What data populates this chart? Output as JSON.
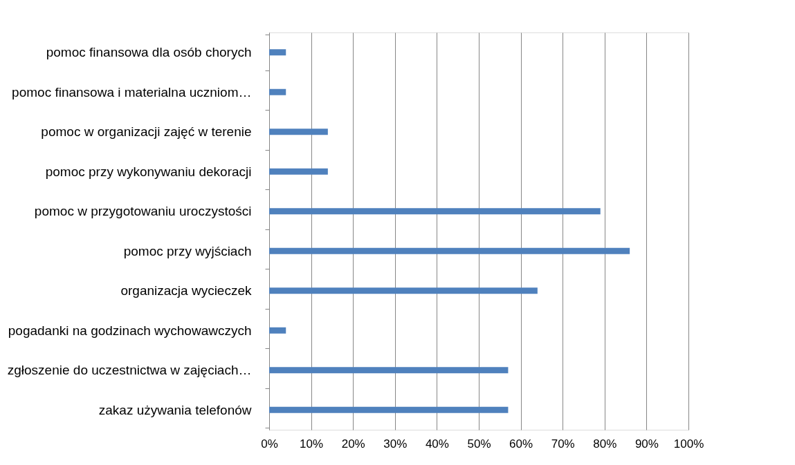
{
  "chart_data": {
    "type": "bar",
    "orientation": "horizontal",
    "categories": [
      "pomoc finansowa dla osób chorych",
      "pomoc finansowa i materialna uczniom…",
      "pomoc w organizacji zajęć w terenie",
      "pomoc przy wykonywaniu dekoracji",
      "pomoc w przygotowaniu uroczystości",
      "pomoc przy wyjściach",
      "organizacja wycieczek",
      "pogadanki na godzinach wychowawczych",
      "zgłoszenie do uczestnictwa w zajęciach…",
      "zakaz używania telefonów"
    ],
    "values": [
      4,
      4,
      14,
      14,
      79,
      86,
      64,
      4,
      57,
      57
    ],
    "color": "#4f81bd",
    "xlim": [
      0,
      100
    ],
    "xticks": [
      {
        "value": 0,
        "label": "0%"
      },
      {
        "value": 10,
        "label": "10%"
      },
      {
        "value": 20,
        "label": "20%"
      },
      {
        "value": 30,
        "label": "30%"
      },
      {
        "value": 40,
        "label": "40%"
      },
      {
        "value": 50,
        "label": "50%"
      },
      {
        "value": 60,
        "label": "60%"
      },
      {
        "value": 70,
        "label": "70%"
      },
      {
        "value": 80,
        "label": "80%"
      },
      {
        "value": 90,
        "label": "90%"
      },
      {
        "value": 100,
        "label": "100%"
      }
    ],
    "grid": "x"
  }
}
